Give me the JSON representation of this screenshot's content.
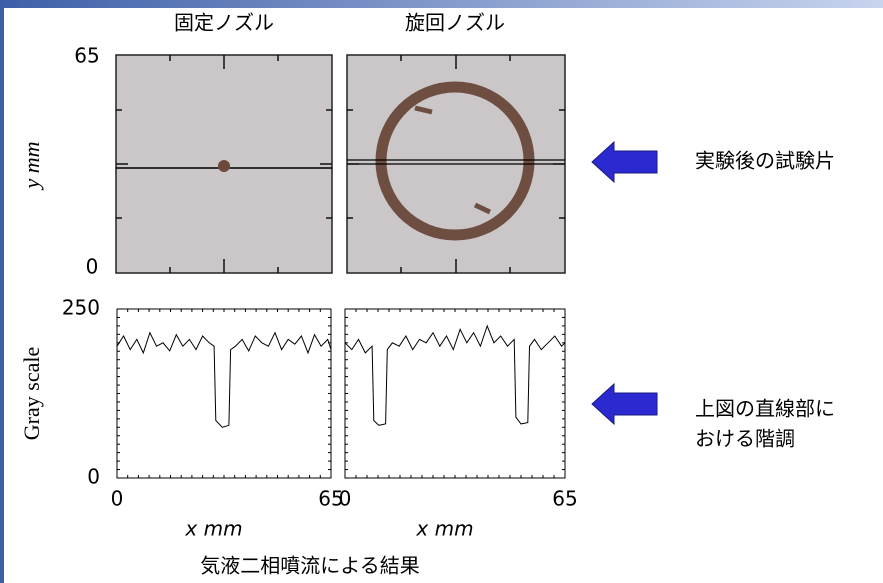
{
  "panels": [
    {
      "title": "固定ノズル"
    },
    {
      "title": "旋回ノズル"
    }
  ],
  "photo_axis": {
    "top": "65",
    "bottom": "0",
    "label": "y mm"
  },
  "notes": [
    "実験後の試験片",
    "上図の直線部に",
    "おける階調"
  ],
  "caption": "気液二相噴流による結果",
  "chart_data": [
    {
      "type": "line",
      "xlabel": "x mm",
      "ylabel": "Gray scale",
      "x": [
        0,
        2,
        4,
        6,
        8,
        10,
        12,
        14,
        16,
        18,
        20,
        22,
        24,
        26,
        28,
        29.5,
        30,
        32,
        34,
        34.5,
        36,
        38,
        40,
        42,
        44,
        46,
        48,
        50,
        52,
        54,
        56,
        58,
        60,
        62,
        64,
        65
      ],
      "series": [
        {
          "color": "#000000",
          "values": [
            195,
            210,
            190,
            205,
            185,
            215,
            195,
            200,
            188,
            212,
            195,
            205,
            190,
            210,
            200,
            195,
            85,
            75,
            78,
            190,
            195,
            205,
            188,
            210,
            200,
            195,
            215,
            190,
            205,
            198,
            210,
            185,
            212,
            195,
            205,
            190
          ]
        }
      ],
      "xlim": [
        0,
        65
      ],
      "ylim": [
        0,
        250
      ],
      "xticks": [
        0,
        65
      ],
      "yticks": [
        0,
        250
      ]
    },
    {
      "type": "line",
      "xlabel": "x mm",
      "x": [
        0,
        2,
        4,
        6,
        8,
        8.5,
        10,
        12,
        12.5,
        14,
        16,
        18,
        20,
        22,
        24,
        26,
        28,
        30,
        32,
        34,
        36,
        38,
        40,
        42,
        44,
        46,
        48,
        50,
        50.5,
        52,
        54,
        54.5,
        56,
        58,
        60,
        62,
        64,
        65
      ],
      "series": [
        {
          "color": "#000000",
          "values": [
            200,
            190,
            205,
            185,
            195,
            85,
            78,
            80,
            190,
            200,
            195,
            210,
            190,
            205,
            200,
            215,
            195,
            210,
            190,
            220,
            200,
            215,
            195,
            225,
            200,
            210,
            195,
            205,
            90,
            80,
            82,
            195,
            205,
            190,
            200,
            210,
            195,
            200
          ]
        }
      ],
      "xlim": [
        0,
        65
      ],
      "ylim": [
        0,
        250
      ],
      "xticks": [
        0,
        65
      ]
    }
  ]
}
